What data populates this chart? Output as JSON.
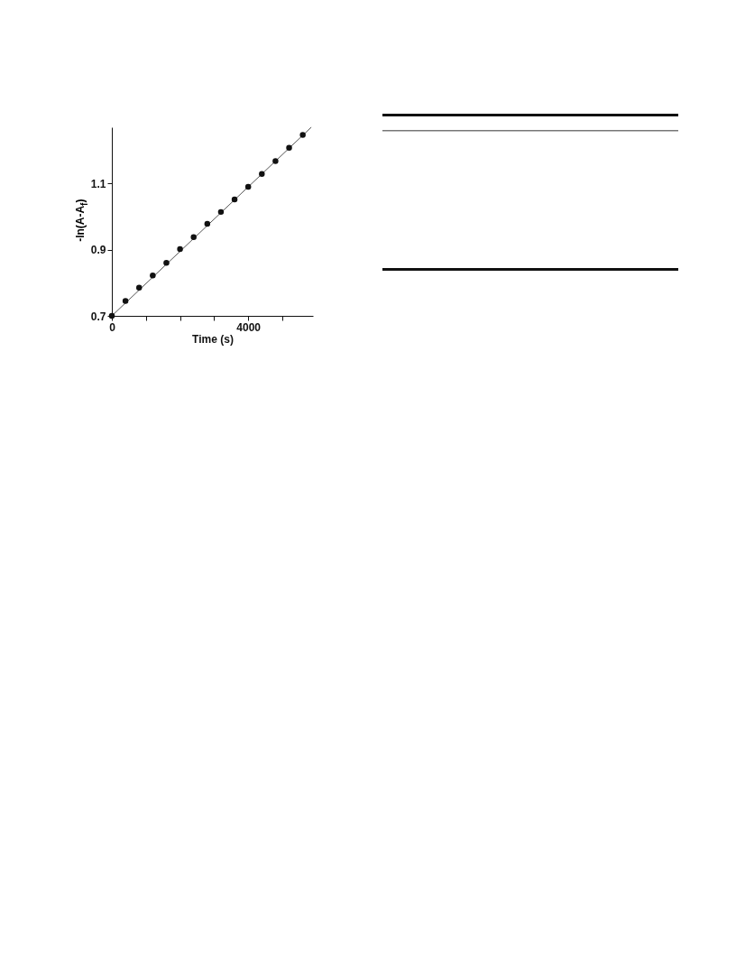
{
  "chart_data": {
    "type": "scatter",
    "xlabel": "Time (s)",
    "ylabel": "-ln(A-A$_{f}$)",
    "xlim": [
      0,
      5900
    ],
    "ylim": [
      0.7,
      1.27
    ],
    "xticks": [
      0,
      {
        "value": 1000,
        "label": null
      },
      {
        "value": 2000,
        "label": null
      },
      {
        "value": 3000,
        "label": null
      },
      4000,
      {
        "value": 5000,
        "label": null
      }
    ],
    "yticks": [
      0.7,
      0.9,
      1.1
    ],
    "grid": false,
    "series": [
      {
        "type": "line",
        "color": "#555555",
        "x": [
          0,
          5850
        ],
        "values": [
          0.7,
          1.27
        ]
      },
      {
        "marker": "circle",
        "color": "#111111",
        "x": [
          0,
          400,
          800,
          1200,
          1600,
          2000,
          2400,
          2800,
          3200,
          3600,
          4000,
          4400,
          4800,
          5200,
          5600
        ],
        "values": [
          0.7,
          0.745,
          0.785,
          0.822,
          0.86,
          0.902,
          0.938,
          0.978,
          1.014,
          1.052,
          1.09,
          1.129,
          1.168,
          1.208,
          1.247
        ]
      }
    ]
  }
}
